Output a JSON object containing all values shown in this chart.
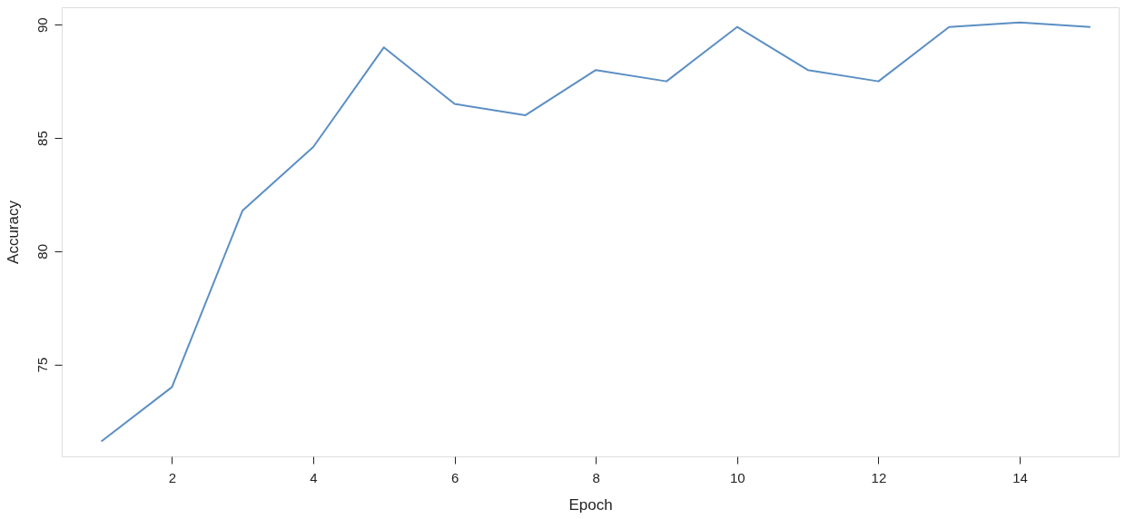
{
  "chart_data": {
    "type": "line",
    "xlabel": "Epoch",
    "ylabel": "Accuracy",
    "x": [
      1,
      2,
      3,
      4,
      5,
      6,
      7,
      8,
      9,
      10,
      11,
      12,
      13,
      14,
      15
    ],
    "series": [
      {
        "color": "#5b8fc4",
        "values": [
          71.6,
          74.0,
          81.8,
          84.6,
          89.0,
          86.5,
          86.0,
          88.0,
          87.5,
          89.9,
          88.0,
          87.5,
          89.9,
          90.1,
          89.9
        ]
      }
    ],
    "xlim": [
      0.44,
      15.4
    ],
    "ylim": [
      70.94,
      90.77
    ],
    "xticks": [
      2,
      4,
      6,
      8,
      10,
      12,
      14
    ],
    "yticks": [
      75,
      80,
      85,
      90
    ],
    "grid": false,
    "legend": false,
    "marker": "none",
    "line_style": "solid"
  }
}
